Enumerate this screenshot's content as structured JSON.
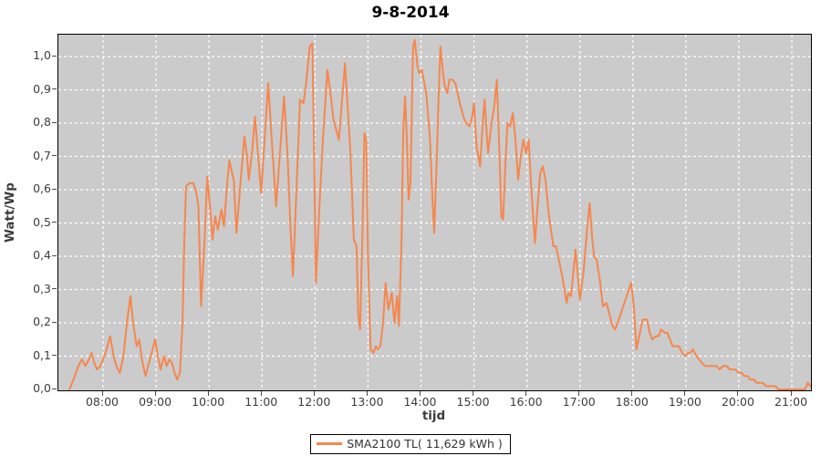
{
  "title": "9-8-2014",
  "colors": {
    "series": "#F5874E",
    "plot_background": "#CBCBCB",
    "gridline": "#FFFFFF",
    "outer_background": "#FFFFFF",
    "axis_text": "#3C3C3C",
    "plot_border": "#000000"
  },
  "legend": {
    "label": "SMA2100 TL( 11,629 kWh )"
  },
  "chart_data": {
    "type": "line",
    "title": "9-8-2014",
    "xlabel": "tijd",
    "ylabel": "Watt/Wp",
    "ylim": [
      0,
      1.07
    ],
    "grid": "white dashed gridlines on gray plot background",
    "legend_position": "bottom-center",
    "y_ticks": [
      {
        "v": 0.0,
        "label": "0,0"
      },
      {
        "v": 0.1,
        "label": "0,1"
      },
      {
        "v": 0.2,
        "label": "0,2"
      },
      {
        "v": 0.3,
        "label": "0,3"
      },
      {
        "v": 0.4,
        "label": "0,4"
      },
      {
        "v": 0.5,
        "label": "0,5"
      },
      {
        "v": 0.6,
        "label": "0,6"
      },
      {
        "v": 0.7,
        "label": "0,7"
      },
      {
        "v": 0.8,
        "label": "0,8"
      },
      {
        "v": 0.9,
        "label": "0,9"
      },
      {
        "v": 1.0,
        "label": "1,0"
      }
    ],
    "x_ticks": [
      {
        "h": 8,
        "label": "08:00"
      },
      {
        "h": 9,
        "label": "09:00"
      },
      {
        "h": 10,
        "label": "10:00"
      },
      {
        "h": 11,
        "label": "11:00"
      },
      {
        "h": 12,
        "label": "12:00"
      },
      {
        "h": 13,
        "label": "13:00"
      },
      {
        "h": 14,
        "label": "14:00"
      },
      {
        "h": 15,
        "label": "15:00"
      },
      {
        "h": 16,
        "label": "16:00"
      },
      {
        "h": 17,
        "label": "17:00"
      },
      {
        "h": 18,
        "label": "18:00"
      },
      {
        "h": 19,
        "label": "19:00"
      },
      {
        "h": 20,
        "label": "20:00"
      },
      {
        "h": 21,
        "label": "21:00"
      }
    ],
    "series": [
      {
        "name": "SMA2100 TL( 11,629 kWh )",
        "color": "#F5874E",
        "points": [
          [
            "07:22",
            0.0
          ],
          [
            "07:25",
            0.02
          ],
          [
            "07:28",
            0.04
          ],
          [
            "07:32",
            0.07
          ],
          [
            "07:36",
            0.09
          ],
          [
            "07:40",
            0.07
          ],
          [
            "07:44",
            0.09
          ],
          [
            "07:47",
            0.11
          ],
          [
            "07:50",
            0.08
          ],
          [
            "07:53",
            0.06
          ],
          [
            "07:57",
            0.07
          ],
          [
            "08:00",
            0.09
          ],
          [
            "08:04",
            0.12
          ],
          [
            "08:08",
            0.16
          ],
          [
            "08:12",
            0.1
          ],
          [
            "08:15",
            0.07
          ],
          [
            "08:19",
            0.05
          ],
          [
            "08:23",
            0.1
          ],
          [
            "08:27",
            0.2
          ],
          [
            "08:31",
            0.28
          ],
          [
            "08:34",
            0.2
          ],
          [
            "08:38",
            0.13
          ],
          [
            "08:41",
            0.15
          ],
          [
            "08:44",
            0.09
          ],
          [
            "08:48",
            0.04
          ],
          [
            "08:52",
            0.08
          ],
          [
            "08:56",
            0.12
          ],
          [
            "08:59",
            0.15
          ],
          [
            "09:02",
            0.1
          ],
          [
            "09:05",
            0.06
          ],
          [
            "09:09",
            0.1
          ],
          [
            "09:12",
            0.07
          ],
          [
            "09:15",
            0.09
          ],
          [
            "09:18",
            0.08
          ],
          [
            "09:21",
            0.05
          ],
          [
            "09:24",
            0.03
          ],
          [
            "09:27",
            0.05
          ],
          [
            "09:30",
            0.2
          ],
          [
            "09:32",
            0.45
          ],
          [
            "09:34",
            0.61
          ],
          [
            "09:38",
            0.62
          ],
          [
            "09:42",
            0.62
          ],
          [
            "09:45",
            0.6
          ],
          [
            "09:48",
            0.55
          ],
          [
            "09:51",
            0.25
          ],
          [
            "09:55",
            0.45
          ],
          [
            "09:58",
            0.64
          ],
          [
            "10:02",
            0.52
          ],
          [
            "10:04",
            0.45
          ],
          [
            "10:07",
            0.52
          ],
          [
            "10:10",
            0.48
          ],
          [
            "10:14",
            0.54
          ],
          [
            "10:17",
            0.49
          ],
          [
            "10:20",
            0.6
          ],
          [
            "10:23",
            0.69
          ],
          [
            "10:26",
            0.65
          ],
          [
            "10:28",
            0.63
          ],
          [
            "10:31",
            0.47
          ],
          [
            "10:35",
            0.6
          ],
          [
            "10:40",
            0.76
          ],
          [
            "10:43",
            0.7
          ],
          [
            "10:45",
            0.63
          ],
          [
            "10:49",
            0.72
          ],
          [
            "10:52",
            0.82
          ],
          [
            "10:55",
            0.72
          ],
          [
            "10:59",
            0.59
          ],
          [
            "11:03",
            0.75
          ],
          [
            "11:07",
            0.92
          ],
          [
            "11:11",
            0.75
          ],
          [
            "11:16",
            0.55
          ],
          [
            "11:20",
            0.7
          ],
          [
            "11:25",
            0.88
          ],
          [
            "11:29",
            0.7
          ],
          [
            "11:32",
            0.5
          ],
          [
            "11:35",
            0.34
          ],
          [
            "11:39",
            0.6
          ],
          [
            "11:43",
            0.87
          ],
          [
            "11:47",
            0.86
          ],
          [
            "11:50",
            0.92
          ],
          [
            "11:54",
            1.03
          ],
          [
            "11:57",
            1.04
          ],
          [
            "11:59",
            0.7
          ],
          [
            "12:01",
            0.32
          ],
          [
            "12:05",
            0.55
          ],
          [
            "12:09",
            0.75
          ],
          [
            "12:14",
            0.96
          ],
          [
            "12:18",
            0.88
          ],
          [
            "12:21",
            0.81
          ],
          [
            "12:24",
            0.78
          ],
          [
            "12:27",
            0.75
          ],
          [
            "12:30",
            0.85
          ],
          [
            "12:34",
            0.98
          ],
          [
            "12:37",
            0.85
          ],
          [
            "12:40",
            0.72
          ],
          [
            "12:44",
            0.45
          ],
          [
            "12:47",
            0.43
          ],
          [
            "12:49",
            0.22
          ],
          [
            "12:51",
            0.18
          ],
          [
            "12:54",
            0.5
          ],
          [
            "12:56",
            0.77
          ],
          [
            "12:58",
            0.75
          ],
          [
            "13:00",
            0.4
          ],
          [
            "13:03",
            0.12
          ],
          [
            "13:06",
            0.11
          ],
          [
            "13:09",
            0.13
          ],
          [
            "13:11",
            0.12
          ],
          [
            "13:14",
            0.13
          ],
          [
            "13:17",
            0.2
          ],
          [
            "13:20",
            0.32
          ],
          [
            "13:23",
            0.24
          ],
          [
            "13:27",
            0.29
          ],
          [
            "13:30",
            0.2
          ],
          [
            "13:33",
            0.28
          ],
          [
            "13:35",
            0.19
          ],
          [
            "13:38",
            0.45
          ],
          [
            "13:40",
            0.78
          ],
          [
            "13:42",
            0.88
          ],
          [
            "13:44",
            0.75
          ],
          [
            "13:46",
            0.57
          ],
          [
            "13:48",
            0.62
          ],
          [
            "13:51",
            1.03
          ],
          [
            "13:53",
            1.05
          ],
          [
            "13:56",
            0.97
          ],
          [
            "13:58",
            0.95
          ],
          [
            "14:01",
            0.96
          ],
          [
            "14:06",
            0.89
          ],
          [
            "14:10",
            0.76
          ],
          [
            "14:13",
            0.57
          ],
          [
            "14:15",
            0.47
          ],
          [
            "14:18",
            0.7
          ],
          [
            "14:20",
            0.88
          ],
          [
            "14:22",
            1.03
          ],
          [
            "14:25",
            0.95
          ],
          [
            "14:27",
            0.91
          ],
          [
            "14:30",
            0.89
          ],
          [
            "14:32",
            0.93
          ],
          [
            "14:36",
            0.93
          ],
          [
            "14:39",
            0.92
          ],
          [
            "14:44",
            0.86
          ],
          [
            "14:48",
            0.82
          ],
          [
            "14:51",
            0.8
          ],
          [
            "14:55",
            0.79
          ],
          [
            "14:58",
            0.82
          ],
          [
            "15:00",
            0.86
          ],
          [
            "15:03",
            0.73
          ],
          [
            "15:07",
            0.67
          ],
          [
            "15:10",
            0.8
          ],
          [
            "15:12",
            0.87
          ],
          [
            "15:16",
            0.71
          ],
          [
            "15:20",
            0.8
          ],
          [
            "15:23",
            0.85
          ],
          [
            "15:26",
            0.93
          ],
          [
            "15:29",
            0.7
          ],
          [
            "15:31",
            0.52
          ],
          [
            "15:33",
            0.51
          ],
          [
            "15:36",
            0.7
          ],
          [
            "15:38",
            0.8
          ],
          [
            "15:41",
            0.79
          ],
          [
            "15:44",
            0.83
          ],
          [
            "15:47",
            0.75
          ],
          [
            "15:50",
            0.63
          ],
          [
            "15:53",
            0.7
          ],
          [
            "15:56",
            0.75
          ],
          [
            "15:59",
            0.71
          ],
          [
            "16:02",
            0.75
          ],
          [
            "16:05",
            0.6
          ],
          [
            "16:09",
            0.44
          ],
          [
            "16:12",
            0.55
          ],
          [
            "16:15",
            0.65
          ],
          [
            "16:18",
            0.67
          ],
          [
            "16:21",
            0.63
          ],
          [
            "16:25",
            0.52
          ],
          [
            "16:30",
            0.43
          ],
          [
            "16:33",
            0.43
          ],
          [
            "16:36",
            0.39
          ],
          [
            "16:40",
            0.34
          ],
          [
            "16:43",
            0.29
          ],
          [
            "16:45",
            0.26
          ],
          [
            "16:47",
            0.29
          ],
          [
            "16:50",
            0.28
          ],
          [
            "16:55",
            0.42
          ],
          [
            "16:58",
            0.33
          ],
          [
            "17:00",
            0.27
          ],
          [
            "17:04",
            0.35
          ],
          [
            "17:08",
            0.48
          ],
          [
            "17:11",
            0.56
          ],
          [
            "17:14",
            0.45
          ],
          [
            "17:16",
            0.4
          ],
          [
            "17:19",
            0.39
          ],
          [
            "17:23",
            0.32
          ],
          [
            "17:26",
            0.25
          ],
          [
            "17:30",
            0.26
          ],
          [
            "17:34",
            0.22
          ],
          [
            "17:37",
            0.19
          ],
          [
            "17:40",
            0.18
          ],
          [
            "17:44",
            0.21
          ],
          [
            "17:49",
            0.25
          ],
          [
            "17:53",
            0.28
          ],
          [
            "17:58",
            0.32
          ],
          [
            "18:01",
            0.25
          ],
          [
            "18:04",
            0.12
          ],
          [
            "18:08",
            0.17
          ],
          [
            "18:11",
            0.21
          ],
          [
            "18:16",
            0.21
          ],
          [
            "18:19",
            0.17
          ],
          [
            "18:22",
            0.15
          ],
          [
            "18:26",
            0.16
          ],
          [
            "18:29",
            0.16
          ],
          [
            "18:32",
            0.18
          ],
          [
            "18:36",
            0.17
          ],
          [
            "18:39",
            0.17
          ],
          [
            "18:42",
            0.15
          ],
          [
            "18:45",
            0.13
          ],
          [
            "18:49",
            0.13
          ],
          [
            "18:52",
            0.13
          ],
          [
            "18:56",
            0.11
          ],
          [
            "18:59",
            0.1
          ],
          [
            "19:02",
            0.11
          ],
          [
            "19:05",
            0.11
          ],
          [
            "19:08",
            0.12
          ],
          [
            "19:12",
            0.1
          ],
          [
            "19:15",
            0.09
          ],
          [
            "19:18",
            0.08
          ],
          [
            "19:22",
            0.07
          ],
          [
            "19:25",
            0.07
          ],
          [
            "19:28",
            0.07
          ],
          [
            "19:32",
            0.07
          ],
          [
            "19:35",
            0.07
          ],
          [
            "19:38",
            0.06
          ],
          [
            "19:42",
            0.07
          ],
          [
            "19:46",
            0.07
          ],
          [
            "19:50",
            0.06
          ],
          [
            "19:53",
            0.06
          ],
          [
            "19:56",
            0.06
          ],
          [
            "20:00",
            0.05
          ],
          [
            "20:03",
            0.05
          ],
          [
            "20:06",
            0.04
          ],
          [
            "20:10",
            0.04
          ],
          [
            "20:13",
            0.03
          ],
          [
            "20:17",
            0.03
          ],
          [
            "20:20",
            0.02
          ],
          [
            "20:24",
            0.02
          ],
          [
            "20:27",
            0.02
          ],
          [
            "20:31",
            0.01
          ],
          [
            "20:34",
            0.01
          ],
          [
            "20:37",
            0.01
          ],
          [
            "20:41",
            0.01
          ],
          [
            "20:45",
            0.0
          ],
          [
            "20:50",
            0.0
          ],
          [
            "20:55",
            0.0
          ],
          [
            "21:00",
            0.0
          ],
          [
            "21:05",
            0.0
          ],
          [
            "21:10",
            0.0
          ],
          [
            "21:15",
            0.0
          ],
          [
            "21:18",
            0.02
          ],
          [
            "21:21",
            0.01
          ]
        ]
      }
    ]
  }
}
